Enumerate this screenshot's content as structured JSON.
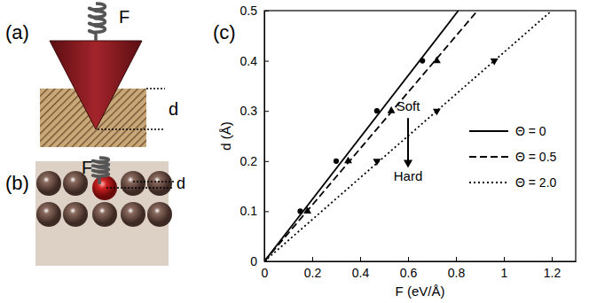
{
  "panel_labels": [
    "(a)",
    "(b)",
    "(c)"
  ],
  "diagrams": {
    "a": {
      "force": "F",
      "depth": "d"
    },
    "b": {
      "force": "F",
      "depth": "d"
    }
  },
  "chart_data": {
    "type": "line",
    "x_label": "F (eV/Å)",
    "y_label": "d (Å)",
    "xlim": [
      0,
      1.3
    ],
    "xticks": [
      0,
      0.2,
      0.4,
      0.6,
      0.8,
      1,
      1.2
    ],
    "ylim": [
      0,
      0.5
    ],
    "yticks": [
      0,
      0.1,
      0.2,
      0.3,
      0.4,
      0.5
    ],
    "grid": false,
    "legend": "right",
    "annotations": [
      {
        "text": "Soft",
        "x": 0.6,
        "y": 0.3
      },
      {
        "text": "Hard",
        "x": 0.6,
        "y": 0.16
      }
    ],
    "series": [
      {
        "name": "Θ = 0",
        "type": "line",
        "line_style": "solid",
        "color": "#000000",
        "x": [
          0,
          0.81
        ],
        "values": [
          0,
          0.5
        ]
      },
      {
        "name": "Θ = 0.5",
        "type": "line",
        "line_style": "dashed",
        "color": "#000000",
        "x": [
          0,
          0.89
        ],
        "values": [
          0,
          0.5
        ]
      },
      {
        "name": "Θ = 2.0",
        "type": "line",
        "line_style": "dotted",
        "color": "#000000",
        "x": [
          0,
          1.2
        ],
        "values": [
          0,
          0.5
        ]
      },
      {
        "type": "scatter",
        "marker": "circle",
        "color": "#000000",
        "x": [
          0,
          0.15,
          0.3,
          0.47,
          0.66
        ],
        "values": [
          0,
          0.1,
          0.2,
          0.3,
          0.4
        ]
      },
      {
        "type": "scatter",
        "marker": "triangle",
        "color": "#000000",
        "x": [
          0.18,
          0.35,
          0.53,
          0.72
        ],
        "values": [
          0.1,
          0.2,
          0.3,
          0.4
        ]
      },
      {
        "type": "scatter",
        "marker": "triangle-down",
        "color": "#000000",
        "x": [
          0.47,
          0.72,
          0.96
        ],
        "values": [
          0.2,
          0.3,
          0.4
        ]
      }
    ]
  }
}
